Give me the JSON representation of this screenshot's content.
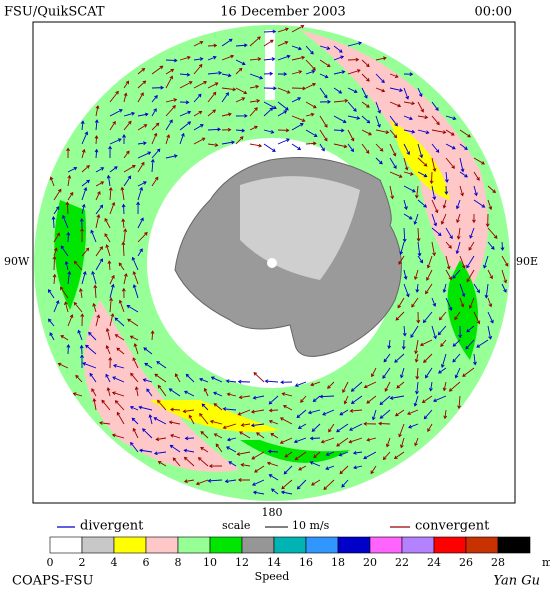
{
  "header": {
    "left": "FSU/QuikSCAT",
    "center": "16 December 2003",
    "right": "00:00"
  },
  "map": {
    "left_label": "90W",
    "right_label": "90E",
    "bottom_label": "180"
  },
  "legend": {
    "divergent": "divergent",
    "scale": "scale",
    "scale_value": "10 m/s",
    "convergent": "convergent",
    "divergent_color": "#0000cc",
    "convergent_color": "#990000"
  },
  "colorbar": {
    "ticks": [
      0,
      2,
      4,
      6,
      8,
      10,
      12,
      14,
      16,
      18,
      20,
      22,
      24,
      26,
      28
    ],
    "unit": "m/s",
    "title": "Speed",
    "colors": [
      "#ffffff",
      "#c8c8c8",
      "#ffff00",
      "#ffc8c8",
      "#96ff96",
      "#00e600",
      "#969696",
      "#00b4b4",
      "#3296ff",
      "#0000c8",
      "#ff64ff",
      "#b482ff",
      "#ff0000",
      "#c83200",
      "#000000"
    ]
  },
  "footer": {
    "left": "COAPS-FSU",
    "right": "Yan Gu"
  }
}
